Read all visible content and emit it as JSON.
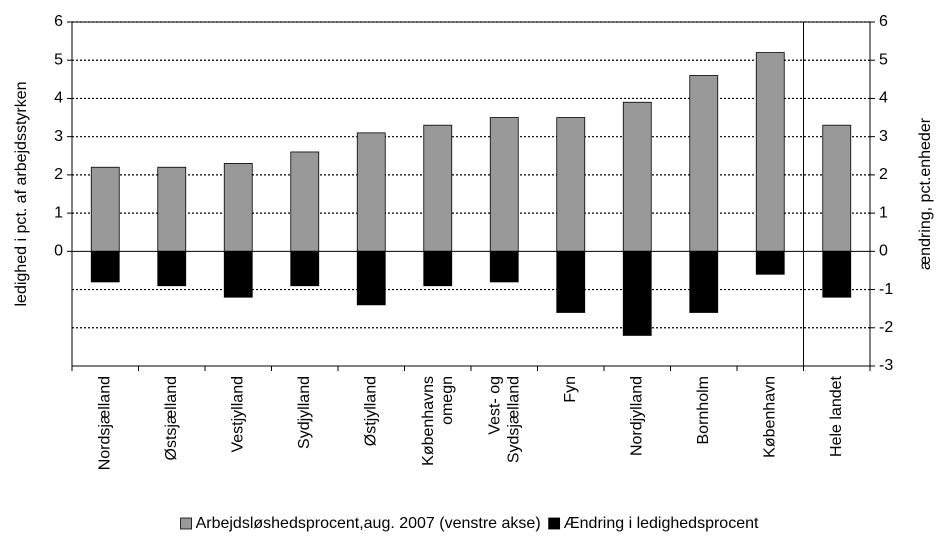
{
  "chart_data": {
    "type": "bar",
    "categories": [
      "Nordsjælland",
      "Østsjælland",
      "Vestjylland",
      "Sydjylland",
      "Østjylland",
      "Københavns omegn",
      "Vest- og Sydsjælland",
      "Fyn",
      "Nordjylland",
      "Bornholm",
      "København",
      "Hele landet"
    ],
    "series": [
      {
        "name": "Arbejdsløshedsprocent,aug. 2007 (venstre akse)",
        "color": "#999999",
        "values": [
          2.2,
          2.2,
          2.3,
          2.6,
          3.1,
          3.3,
          3.5,
          3.5,
          3.9,
          4.6,
          5.2,
          3.3
        ]
      },
      {
        "name": "Ændring i ledighedsprocent",
        "color": "#000000",
        "axis": "y2",
        "values": [
          -0.8,
          -0.9,
          -1.2,
          -0.9,
          -1.4,
          -0.9,
          -0.8,
          -1.6,
          -2.2,
          -1.6,
          -0.6,
          -1.2
        ]
      }
    ],
    "ylabel": "ledighed i pct. af arbejdsstyrken",
    "y2label": "ændring, pct.enheder",
    "ylim": [
      -3,
      6
    ],
    "yticks": [
      0,
      1,
      2,
      3,
      4,
      5,
      6
    ],
    "y2lim": [
      -3,
      6
    ],
    "y2ticks": [
      -3,
      -2,
      -1,
      0,
      1,
      2,
      3,
      4,
      5,
      6
    ],
    "grid": true,
    "legend": "bottom"
  }
}
